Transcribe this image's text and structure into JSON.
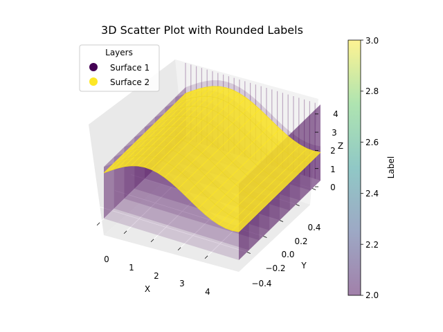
{
  "chart_data": {
    "type": "scatter",
    "projection": "3d",
    "title": "3D Scatter Plot with Rounded Labels",
    "xlabel": "X",
    "ylabel": "Y",
    "zlabel": "Z",
    "x_ticks": [
      "0",
      "1",
      "2",
      "3",
      "4"
    ],
    "y_ticks": [
      "−0.4",
      "−0.2",
      "0.0",
      "0.2",
      "0.4"
    ],
    "z_ticks": [
      "0",
      "1",
      "2",
      "3",
      "4"
    ],
    "xlim": [
      -0.5,
      5.0
    ],
    "ylim": [
      -0.55,
      0.55
    ],
    "zlim": [
      -1.0,
      4.8
    ],
    "grid": true,
    "legend": {
      "title": "Layers",
      "placement": "top-left",
      "entries": [
        {
          "name": "Surface 1",
          "color": "#440154"
        },
        {
          "name": "Surface 2",
          "color": "#fde725"
        }
      ]
    },
    "colorbar": {
      "label": "Label",
      "min": 2.0,
      "max": 3.0,
      "ticks": [
        "2.0",
        "2.2",
        "2.4",
        "2.6",
        "2.8",
        "3.0"
      ],
      "colormap": "viridis"
    },
    "series": [
      {
        "name": "Surface 1",
        "value": 2,
        "color": "#440154",
        "alpha": 0.5,
        "x_range": [
          0,
          5
        ],
        "y_range": [
          -0.5,
          0.5
        ],
        "z_range": [
          -1,
          4
        ],
        "shape": "filled volume below a sine sheet"
      },
      {
        "name": "Surface 2",
        "value": 3,
        "color": "#fde725",
        "alpha": 0.5,
        "x_range": [
          0,
          5
        ],
        "y_range": [
          -0.5,
          0.5
        ],
        "z_surface": "approximately 2 + 1.2·sin(x) across all y"
      }
    ]
  }
}
